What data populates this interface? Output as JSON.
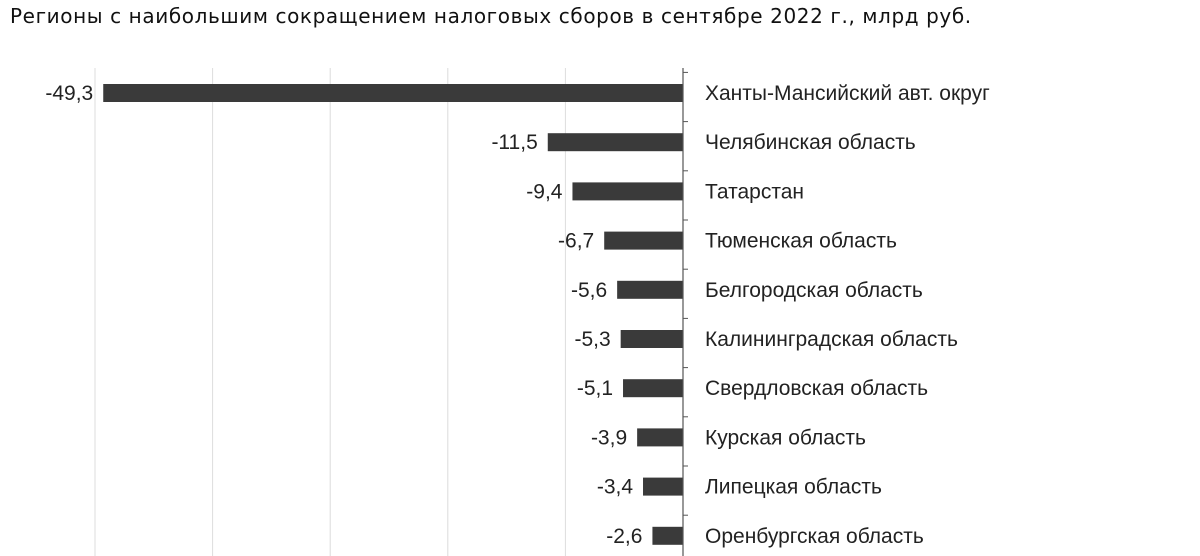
{
  "title": "Регионы с наибольшим сокращением налоговых сборов в сентябре 2022 г., млрд руб.",
  "chart_data": {
    "type": "bar",
    "orientation": "horizontal",
    "title": "Регионы с наибольшим сокращением налоговых сборов в сентябре 2022 г., млрд руб.",
    "xlabel": "",
    "ylabel": "",
    "xlim": [
      -50,
      0
    ],
    "grid": true,
    "categories": [
      "Ханты-Мансийский авт. округ",
      "Челябинская область",
      "Татарстан",
      "Тюменская область",
      "Белгородская область",
      "Калининградская область",
      "Свердловская область",
      "Курская область",
      "Липецкая область",
      "Оренбургская область"
    ],
    "values": [
      -49.3,
      -11.5,
      -9.4,
      -6.7,
      -5.6,
      -5.3,
      -5.1,
      -3.9,
      -3.4,
      -2.6
    ],
    "value_labels": [
      "-49,3",
      "-11,5",
      "-9,4",
      "-6,7",
      "-5,6",
      "-5,3",
      "-5,1",
      "-3,9",
      "-3,4",
      "-2,6"
    ],
    "bar_color": "#3a3a3a",
    "grid_color": "#dcdcdc"
  }
}
